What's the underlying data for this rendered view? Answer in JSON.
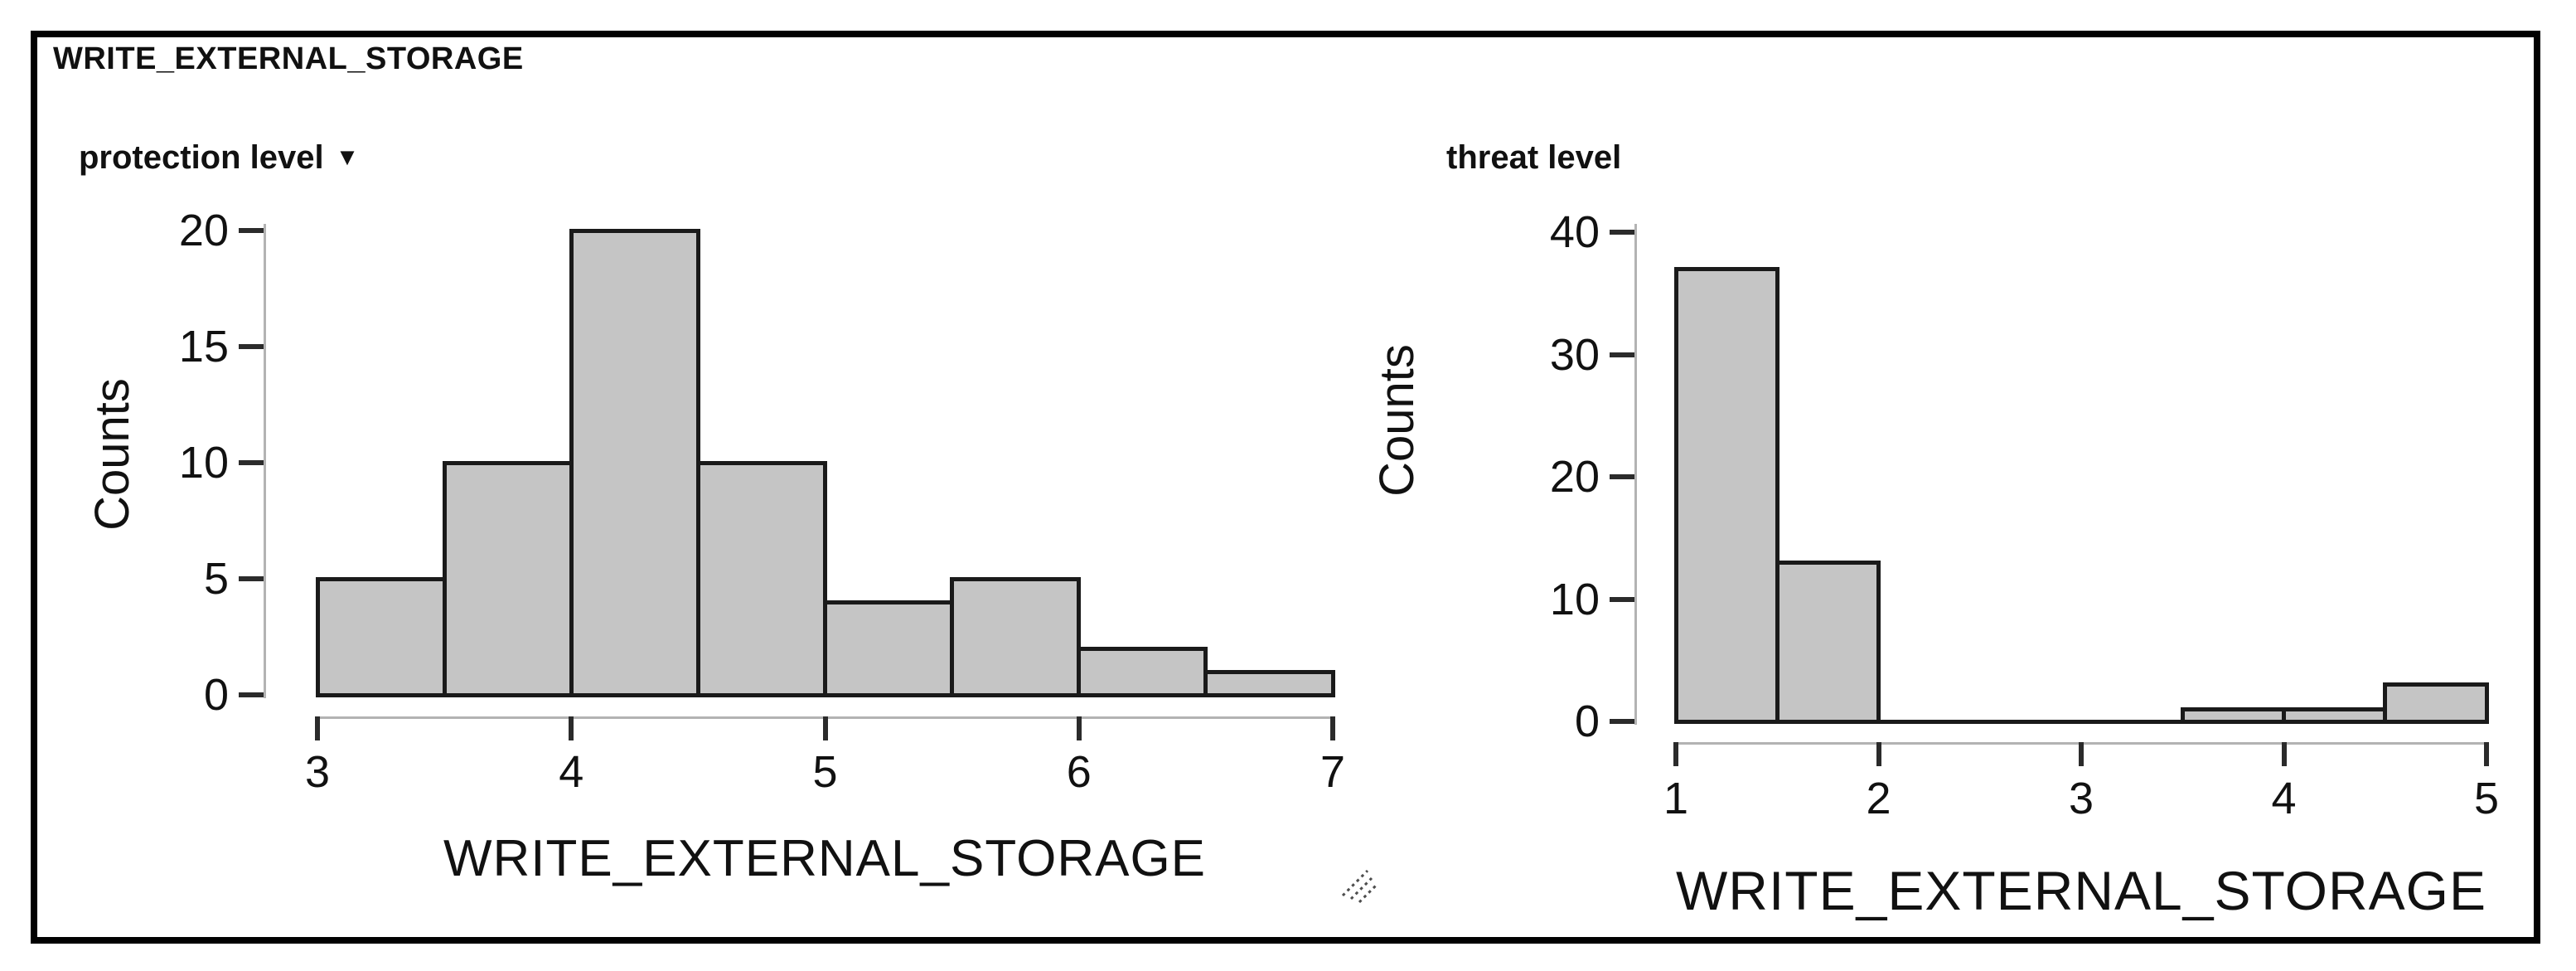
{
  "panel": {
    "title": "WRITE_EXTERNAL_STORAGE"
  },
  "charts": [
    {
      "header": "protection level",
      "sort_indicator": "▼",
      "ylabel": "Counts",
      "xlabel": "WRITE_EXTERNAL_STORAGE"
    },
    {
      "header": "threat level",
      "ylabel": "Counts",
      "xlabel": "WRITE_EXTERNAL_STORAGE"
    }
  ],
  "icons": {
    "sort_indicator": "triangle-down-icon",
    "corner_grip": "resize-grip-icon"
  },
  "colors": {
    "bar_fill": "#c5c5c5",
    "bar_border": "#1a1a1a",
    "axis_line": "#b3b3b3",
    "tick": "#2b2b2b",
    "text": "#111111",
    "frame_border": "#010101"
  },
  "chart_data": [
    {
      "type": "bar",
      "kind": "histogram",
      "title": "protection level",
      "xlabel": "WRITE_EXTERNAL_STORAGE",
      "ylabel": "Counts",
      "bin_width": 0.5,
      "bin_edges": [
        3,
        3.5,
        4,
        4.5,
        5,
        5.5,
        6,
        6.5,
        7
      ],
      "values": [
        5,
        10,
        20,
        10,
        4,
        5,
        2,
        1
      ],
      "x_ticks": [
        3,
        4,
        5,
        6,
        7
      ],
      "y_ticks": [
        0,
        5,
        10,
        15,
        20
      ],
      "xlim": [
        3,
        7
      ],
      "ylim": [
        0,
        20
      ],
      "grid": false,
      "legend": "none"
    },
    {
      "type": "bar",
      "kind": "histogram",
      "title": "threat level",
      "xlabel": "WRITE_EXTERNAL_STORAGE",
      "ylabel": "Counts",
      "bin_width": 0.5,
      "bin_edges": [
        1,
        1.5,
        2,
        2.5,
        3,
        3.5,
        4,
        4.5,
        5
      ],
      "values": [
        37,
        13,
        0,
        0,
        0,
        1,
        1,
        3
      ],
      "x_ticks": [
        1,
        2,
        3,
        4,
        5
      ],
      "y_ticks": [
        0,
        10,
        20,
        30,
        40
      ],
      "xlim": [
        1,
        5
      ],
      "ylim": [
        0,
        40
      ],
      "grid": false,
      "legend": "none"
    }
  ]
}
